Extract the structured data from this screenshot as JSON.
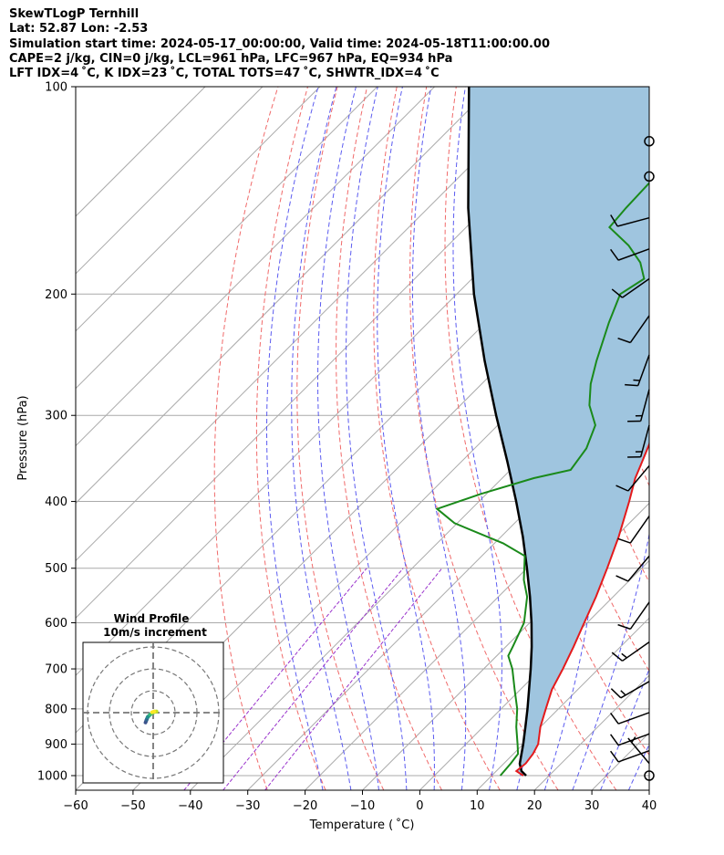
{
  "header": {
    "line1": "SkewTLogP Ternhill",
    "line2": "Lat: 52.87   Lon: -2.53",
    "line3": "Simulation start time: 2024-05-17_00:00:00, Valid time: 2024-05-18T11:00:00.00",
    "line4": "CAPE=2 j/kg, CIN=0 j/kg, LCL=961 hPa, LFC=967 hPa, EQ=934 hPa",
    "line5": "LFT IDX=4 ˚C, K IDX=23 ˚C, TOTAL TOTS=47 ˚C, SHWTR_IDX=4 ˚C"
  },
  "chart_data": {
    "type": "skewt",
    "xlabel": "Temperature ( ˚C)",
    "ylabel": "Pressure (hPa)",
    "xlim": [
      -60,
      40
    ],
    "ylim": [
      1050,
      100
    ],
    "x_ticks": [
      -60,
      -50,
      -40,
      -30,
      -20,
      -10,
      0,
      10,
      20,
      30,
      40
    ],
    "y_ticks": [
      1000,
      900,
      800,
      700,
      600,
      500,
      400,
      300,
      200,
      100
    ],
    "grid": true,
    "colors": {
      "temperature": "#e41a1c",
      "dewpoint": "#1a8a1a",
      "parcel": "#000000",
      "cape_fill": "#9fc5df",
      "dry_adiabats": "#f06a6a",
      "moist_adiabats": "#5b5bf0",
      "mixing_ratio": "#9932cc",
      "isotherms": "#aaaaaa"
    },
    "temperature_profile": [
      [
        1000,
        15.5
      ],
      [
        985,
        13.5
      ],
      [
        960,
        13.8
      ],
      [
        930,
        13.4
      ],
      [
        900,
        12.6
      ],
      [
        850,
        10.0
      ],
      [
        800,
        7.8
      ],
      [
        750,
        5.5
      ],
      [
        700,
        3.8
      ],
      [
        650,
        1.8
      ],
      [
        600,
        -0.5
      ],
      [
        550,
        -3.0
      ],
      [
        500,
        -6.0
      ],
      [
        450,
        -9.5
      ],
      [
        400,
        -13.8
      ],
      [
        370,
        -16.8
      ],
      [
        350,
        -18.5
      ],
      [
        330,
        -20.3
      ],
      [
        300,
        -24.5
      ],
      [
        280,
        -27.5
      ],
      [
        260,
        -30.8
      ],
      [
        240,
        -34.5
      ],
      [
        235,
        -36.0
      ],
      [
        232,
        -36.7
      ],
      [
        220,
        -36.5
      ],
      [
        200,
        -36.0
      ],
      [
        180,
        -36.5
      ],
      [
        170,
        -38.5
      ],
      [
        160,
        -41.5
      ],
      [
        150,
        -46.0
      ],
      [
        140,
        -50.3
      ],
      [
        130,
        -54.0
      ],
      [
        120,
        -57.0
      ],
      [
        110,
        -60.0
      ],
      [
        100,
        -63.0
      ]
    ],
    "dewpoint_profile": [
      [
        1000,
        11.5
      ],
      [
        960,
        11.2
      ],
      [
        930,
        10.8
      ],
      [
        900,
        9.0
      ],
      [
        850,
        5.8
      ],
      [
        800,
        2.8
      ],
      [
        750,
        -1.0
      ],
      [
        700,
        -5.0
      ],
      [
        670,
        -8.0
      ],
      [
        650,
        -8.8
      ],
      [
        600,
        -11.0
      ],
      [
        550,
        -15.0
      ],
      [
        520,
        -18.5
      ],
      [
        480,
        -22.5
      ],
      [
        460,
        -28.5
      ],
      [
        430,
        -40.5
      ],
      [
        410,
        -46.0
      ],
      [
        390,
        -41.0
      ],
      [
        370,
        -34.5
      ],
      [
        360,
        -29.5
      ],
      [
        335,
        -30.5
      ],
      [
        310,
        -33.0
      ],
      [
        290,
        -37.5
      ],
      [
        270,
        -41.0
      ],
      [
        250,
        -44.0
      ],
      [
        220,
        -48.5
      ],
      [
        200,
        -51.5
      ],
      [
        190,
        -50.0
      ],
      [
        180,
        -53.5
      ],
      [
        170,
        -58.5
      ],
      [
        160,
        -65.0
      ],
      [
        150,
        -65.5
      ],
      [
        130,
        -66.0
      ],
      [
        115,
        -67.0
      ],
      [
        100,
        -68.0
      ]
    ],
    "parcel_profile": [
      [
        1000,
        16.0
      ],
      [
        985,
        14.4
      ],
      [
        961,
        12.8
      ],
      [
        900,
        10.0
      ],
      [
        850,
        7.4
      ],
      [
        800,
        4.6
      ],
      [
        750,
        1.5
      ],
      [
        700,
        -1.8
      ],
      [
        650,
        -5.5
      ],
      [
        600,
        -9.7
      ],
      [
        550,
        -14.5
      ],
      [
        500,
        -20.0
      ],
      [
        450,
        -26.2
      ],
      [
        400,
        -33.5
      ],
      [
        350,
        -42.0
      ],
      [
        300,
        -52.0
      ],
      [
        250,
        -63.5
      ],
      [
        200,
        -77.0
      ],
      [
        150,
        -93.0
      ],
      [
        100,
        -114.0
      ]
    ],
    "wind_barbs": [
      {
        "p": 1000,
        "speed_kt": 0,
        "dir": null
      },
      {
        "p": 960,
        "speed_kt": 5,
        "dir": 320
      },
      {
        "p": 920,
        "speed_kt": 10,
        "dir": 250
      },
      {
        "p": 870,
        "speed_kt": 10,
        "dir": 250
      },
      {
        "p": 810,
        "speed_kt": 10,
        "dir": 250
      },
      {
        "p": 730,
        "speed_kt": 15,
        "dir": 240
      },
      {
        "p": 640,
        "speed_kt": 15,
        "dir": 235
      },
      {
        "p": 560,
        "speed_kt": 10,
        "dir": 215
      },
      {
        "p": 480,
        "speed_kt": 10,
        "dir": 220
      },
      {
        "p": 420,
        "speed_kt": 10,
        "dir": 215
      },
      {
        "p": 355,
        "speed_kt": 10,
        "dir": 220
      },
      {
        "p": 310,
        "speed_kt": 15,
        "dir": 195
      },
      {
        "p": 275,
        "speed_kt": 15,
        "dir": 195
      },
      {
        "p": 245,
        "speed_kt": 15,
        "dir": 200
      },
      {
        "p": 215,
        "speed_kt": 10,
        "dir": 215
      },
      {
        "p": 190,
        "speed_kt": 10,
        "dir": 235
      },
      {
        "p": 172,
        "speed_kt": 10,
        "dir": 250
      },
      {
        "p": 155,
        "speed_kt": 10,
        "dir": 255
      },
      {
        "p": 135,
        "speed_kt": 0,
        "dir": null
      },
      {
        "p": 120,
        "speed_kt": 0,
        "dir": null
      }
    ],
    "hodograph": {
      "title": "Wind Profile",
      "subtitle": "10m/s increment",
      "rings_ms": [
        10,
        20,
        30
      ],
      "points_uv": [
        [
          -3.5,
          -4.5
        ],
        [
          -3.0,
          -3.2
        ],
        [
          -2.5,
          -2.0
        ],
        [
          -1.5,
          -1.0
        ],
        [
          -0.5,
          -0.2
        ],
        [
          0.5,
          0.3
        ],
        [
          1.5,
          0.5
        ],
        [
          0.5,
          0.5
        ],
        [
          -0.5,
          0.2
        ]
      ]
    }
  }
}
